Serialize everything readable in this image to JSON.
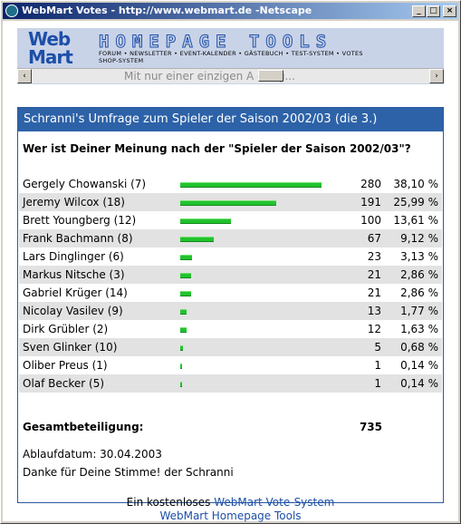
{
  "window": {
    "title": "WebMart Votes - http://www.webmart.de -Netscape",
    "buttons": [
      "_",
      "□",
      "×"
    ]
  },
  "banner": {
    "logo_line1": "Web",
    "logo_line2": "Mart",
    "heading": "HOMEPAGE TOOLS",
    "menu_line1": "FORUM • NEWSLETTER • EVENT-KALENDER • GÄSTEBUCH • TEST-SYSTEM • VOTES",
    "menu_line2": "SHOP-SYSTEM",
    "marquee": "Mit nur einer einzigen A        dung...",
    "scroll_left": "‹",
    "scroll_right": "›"
  },
  "poll": {
    "header": "Schranni's Umfrage zum Spieler der Saison 2002/03 (die 3.)",
    "question": "Wer ist Deiner Meinung nach der \"Spieler der Saison 2002/03\"?",
    "options": [
      {
        "label": "Gergely Chowanski (7)",
        "votes": "280",
        "percent": "38,10 %",
        "fraction": 0.381
      },
      {
        "label": "Jeremy Wilcox (18)",
        "votes": "191",
        "percent": "25,99 %",
        "fraction": 0.2599
      },
      {
        "label": "Brett Youngberg (12)",
        "votes": "100",
        "percent": "13,61 %",
        "fraction": 0.1361
      },
      {
        "label": "Frank Bachmann (8)",
        "votes": "67",
        "percent": "9,12 %",
        "fraction": 0.0912
      },
      {
        "label": "Lars Dinglinger (6)",
        "votes": "23",
        "percent": "3,13 %",
        "fraction": 0.0313
      },
      {
        "label": "Markus Nitsche (3)",
        "votes": "21",
        "percent": "2,86 %",
        "fraction": 0.0286
      },
      {
        "label": "Gabriel Krüger (14)",
        "votes": "21",
        "percent": "2,86 %",
        "fraction": 0.0286
      },
      {
        "label": "Nicolay Vasilev (9)",
        "votes": "13",
        "percent": "1,77 %",
        "fraction": 0.0177
      },
      {
        "label": "Dirk Grübler (2)",
        "votes": "12",
        "percent": "1,63 %",
        "fraction": 0.0163
      },
      {
        "label": "Sven Glinker (10)",
        "votes": "5",
        "percent": "0,68 %",
        "fraction": 0.0068
      },
      {
        "label": "Oliber Preus (1)",
        "votes": "1",
        "percent": "0,14 %",
        "fraction": 0.0014
      },
      {
        "label": "Olaf Becker (5)",
        "votes": "1",
        "percent": "0,14 %",
        "fraction": 0.0014
      }
    ],
    "total_label": "Gesamtbeteiligung:",
    "total_value": "735",
    "expiry": "Ablaufdatum: 30.04.2003",
    "thanks": "Danke für Deine Stimme! der Schranni",
    "footer_prefix": "Ein kostenloses ",
    "footer_link1": "WebMart Vote-System",
    "footer_link2": "WebMart Homepage Tools",
    "bar_color": "#22c22e",
    "header_color": "#2d62a8"
  }
}
